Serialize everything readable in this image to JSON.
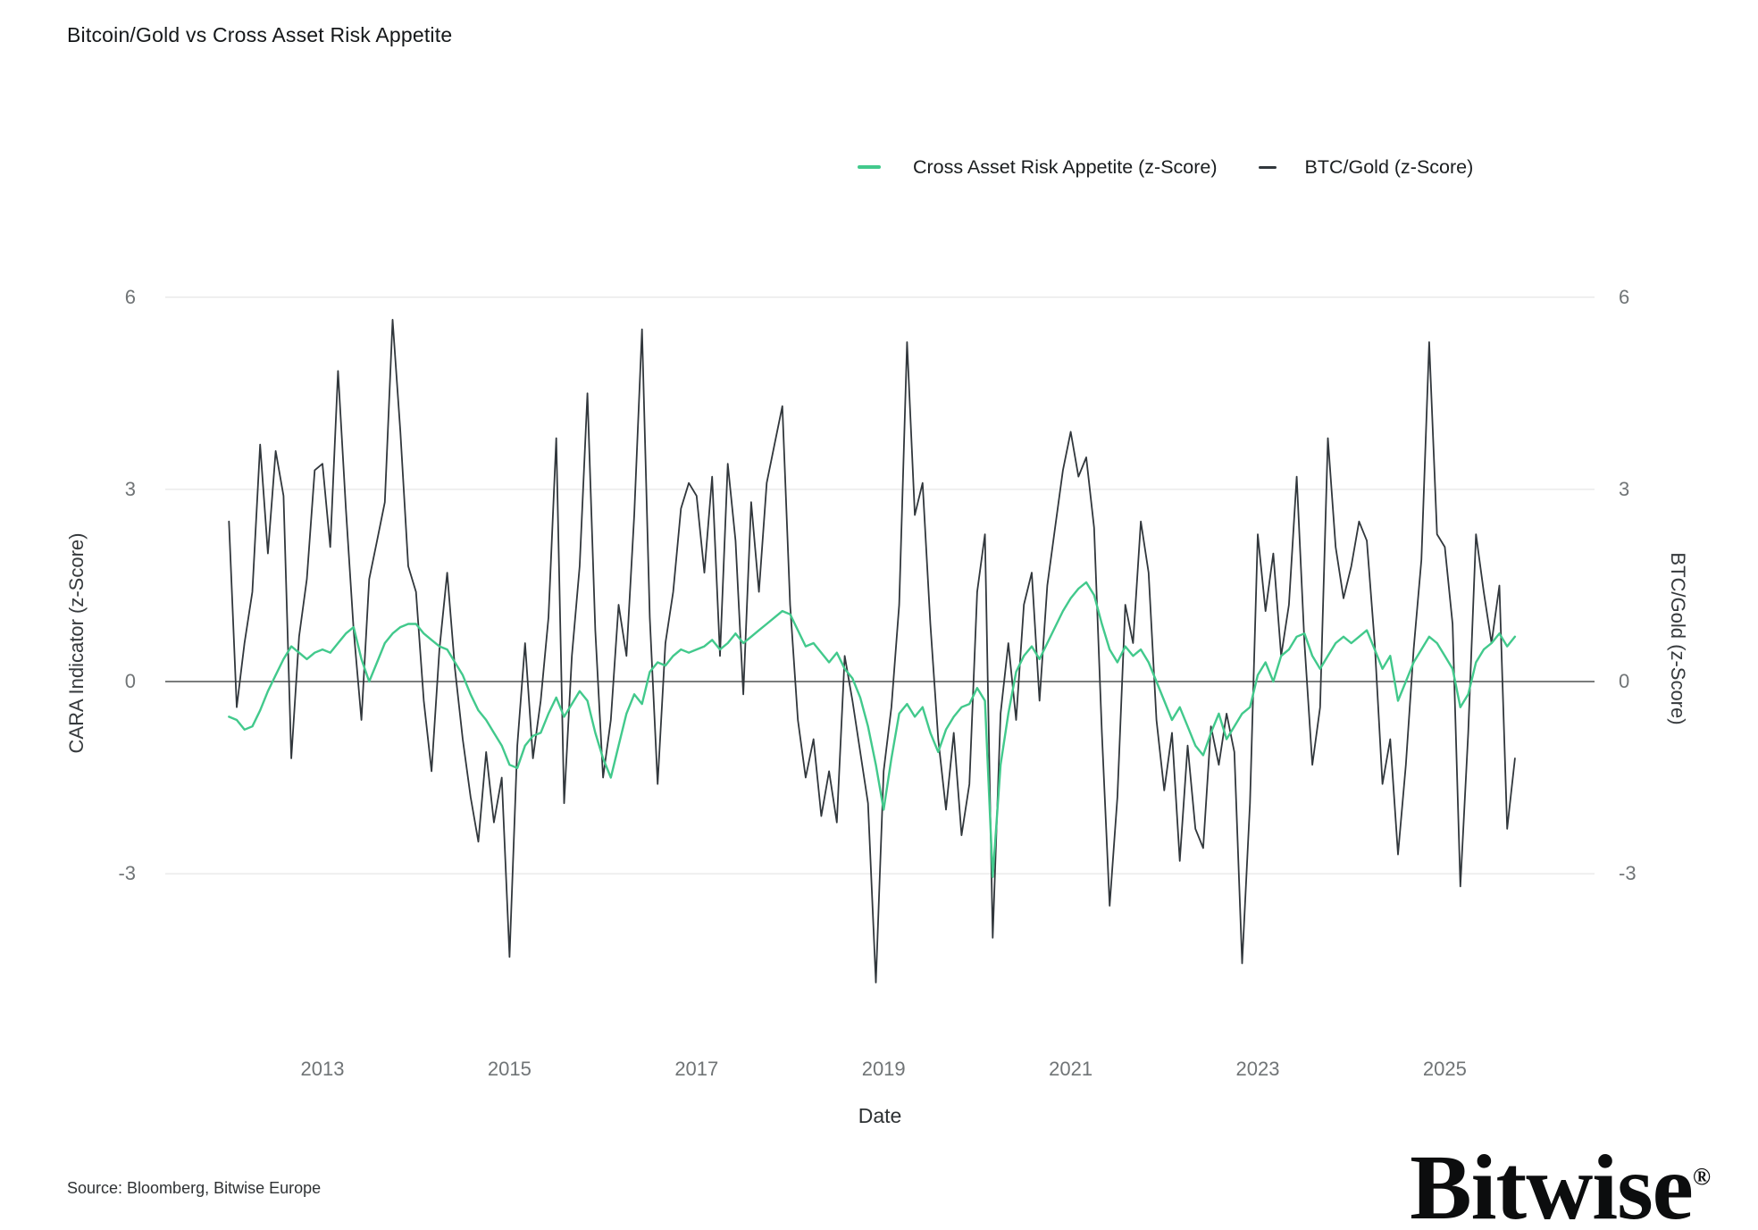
{
  "title": "Bitcoin/Gold vs Cross Asset Risk Appetite",
  "legend": {
    "cara": {
      "label": "Cross Asset Risk Appetite (z-Score)",
      "color": "#42c98c"
    },
    "btc": {
      "label": "BTC/Gold (z-Score)",
      "color": "#31373c"
    }
  },
  "axes": {
    "left": {
      "title": "CARA Indicator (z-Score)",
      "ticks": [
        6,
        3,
        0,
        -3
      ]
    },
    "right": {
      "title": "BTC/Gold (z-Score)",
      "ticks": [
        6,
        3,
        0,
        -3
      ]
    },
    "x": {
      "title": "Date",
      "ticks": [
        2013,
        2015,
        2017,
        2019,
        2021,
        2023,
        2025
      ]
    }
  },
  "source": "Source: Bloomberg, Bitwise Europe",
  "brand": {
    "name": "Bitwise",
    "registered": "®"
  },
  "chart_data": {
    "type": "line",
    "title": "Bitcoin/Gold vs Cross Asset Risk Appetite",
    "xlabel": "Date",
    "ylabel_left": "CARA Indicator (z-Score)",
    "ylabel_right": "BTC/Gold (z-Score)",
    "x_ticks": [
      2013,
      2015,
      2017,
      2019,
      2021,
      2023,
      2025
    ],
    "y_ticks": [
      6,
      3,
      0,
      -3
    ],
    "ylim": [
      -5,
      6.3
    ],
    "xlim": [
      2011.3,
      2026.1
    ],
    "grid": "horizontal-only, zero-line emphasized",
    "legend_position": "top-right",
    "x_start_year": 2012.0,
    "x_step_years": 0.083333,
    "x_unit": "decimal calendar year, monthly resolution (values estimated from pixels)",
    "series": [
      {
        "name": "BTC/Gold (z-Score)",
        "color": "#31373c",
        "axis": "right",
        "values": [
          2.5,
          -0.4,
          0.6,
          1.4,
          3.7,
          2.0,
          3.6,
          2.9,
          -1.2,
          0.7,
          1.6,
          3.3,
          3.4,
          2.1,
          4.85,
          2.7,
          0.8,
          -0.6,
          1.6,
          2.2,
          2.8,
          5.65,
          3.9,
          1.8,
          1.4,
          -0.3,
          -1.4,
          0.5,
          1.7,
          0.2,
          -0.9,
          -1.8,
          -2.5,
          -1.1,
          -2.2,
          -1.5,
          -4.3,
          -1.0,
          0.6,
          -1.2,
          -0.3,
          1.0,
          3.8,
          -1.9,
          0.4,
          1.8,
          4.5,
          0.8,
          -1.5,
          -0.6,
          1.2,
          0.4,
          2.6,
          5.5,
          1.0,
          -1.6,
          0.6,
          1.4,
          2.7,
          3.1,
          2.9,
          1.7,
          3.2,
          0.4,
          3.4,
          2.2,
          -0.2,
          2.8,
          1.4,
          3.1,
          3.7,
          4.3,
          1.2,
          -0.6,
          -1.5,
          -0.9,
          -2.1,
          -1.4,
          -2.2,
          0.4,
          -0.3,
          -1.1,
          -1.9,
          -4.7,
          -1.4,
          -0.4,
          1.2,
          5.3,
          2.6,
          3.1,
          0.9,
          -0.9,
          -2.0,
          -0.8,
          -2.4,
          -1.6,
          1.4,
          2.3,
          -4.0,
          -0.5,
          0.6,
          -0.6,
          1.2,
          1.7,
          -0.3,
          1.5,
          2.4,
          3.3,
          3.9,
          3.2,
          3.5,
          2.4,
          -0.8,
          -3.5,
          -1.8,
          1.2,
          0.6,
          2.5,
          1.7,
          -0.6,
          -1.7,
          -0.8,
          -2.8,
          -1.0,
          -2.3,
          -2.6,
          -0.7,
          -1.3,
          -0.5,
          -1.1,
          -4.4,
          -1.9,
          2.3,
          1.1,
          2.0,
          0.4,
          1.2,
          3.2,
          0.6,
          -1.3,
          -0.4,
          3.8,
          2.1,
          1.3,
          1.8,
          2.5,
          2.2,
          0.6,
          -1.6,
          -0.9,
          -2.7,
          -1.3,
          0.5,
          1.9,
          5.3,
          2.3,
          2.1,
          0.9,
          -3.2,
          -0.8,
          2.3,
          1.4,
          0.6,
          1.5,
          -2.3,
          -1.2
        ]
      },
      {
        "name": "Cross Asset Risk Appetite (z-Score)",
        "color": "#42c98c",
        "axis": "left",
        "values": [
          -0.55,
          -0.6,
          -0.75,
          -0.7,
          -0.45,
          -0.15,
          0.1,
          0.35,
          0.55,
          0.45,
          0.35,
          0.45,
          0.5,
          0.45,
          0.6,
          0.75,
          0.85,
          0.35,
          0.0,
          0.3,
          0.6,
          0.75,
          0.85,
          0.9,
          0.9,
          0.75,
          0.65,
          0.55,
          0.5,
          0.3,
          0.1,
          -0.2,
          -0.45,
          -0.6,
          -0.8,
          -1.0,
          -1.3,
          -1.35,
          -1.0,
          -0.85,
          -0.8,
          -0.5,
          -0.25,
          -0.55,
          -0.35,
          -0.15,
          -0.3,
          -0.8,
          -1.2,
          -1.5,
          -1.0,
          -0.5,
          -0.2,
          -0.35,
          0.15,
          0.3,
          0.25,
          0.4,
          0.5,
          0.45,
          0.5,
          0.55,
          0.65,
          0.5,
          0.6,
          0.75,
          0.6,
          0.7,
          0.8,
          0.9,
          1.0,
          1.1,
          1.05,
          0.8,
          0.55,
          0.6,
          0.45,
          0.3,
          0.45,
          0.2,
          0.05,
          -0.25,
          -0.7,
          -1.3,
          -2.0,
          -1.2,
          -0.5,
          -0.35,
          -0.55,
          -0.4,
          -0.8,
          -1.1,
          -0.75,
          -0.55,
          -0.4,
          -0.35,
          -0.1,
          -0.3,
          -3.05,
          -1.3,
          -0.5,
          0.15,
          0.4,
          0.55,
          0.35,
          0.6,
          0.85,
          1.1,
          1.3,
          1.45,
          1.55,
          1.35,
          0.9,
          0.5,
          0.3,
          0.55,
          0.4,
          0.5,
          0.3,
          0.0,
          -0.3,
          -0.6,
          -0.4,
          -0.7,
          -1.0,
          -1.15,
          -0.8,
          -0.5,
          -0.9,
          -0.7,
          -0.5,
          -0.4,
          0.1,
          0.3,
          0.0,
          0.4,
          0.5,
          0.7,
          0.75,
          0.4,
          0.2,
          0.4,
          0.6,
          0.7,
          0.6,
          0.7,
          0.8,
          0.5,
          0.2,
          0.4,
          -0.3,
          0.0,
          0.3,
          0.5,
          0.7,
          0.6,
          0.4,
          0.2,
          -0.4,
          -0.2,
          0.3,
          0.5,
          0.6,
          0.75,
          0.55,
          0.7
        ]
      }
    ]
  },
  "style": {
    "grid_color": "#e0e0e0",
    "zero_line_color": "#2a2d2f",
    "tick_label_color": "#707476",
    "background": "#ffffff"
  }
}
